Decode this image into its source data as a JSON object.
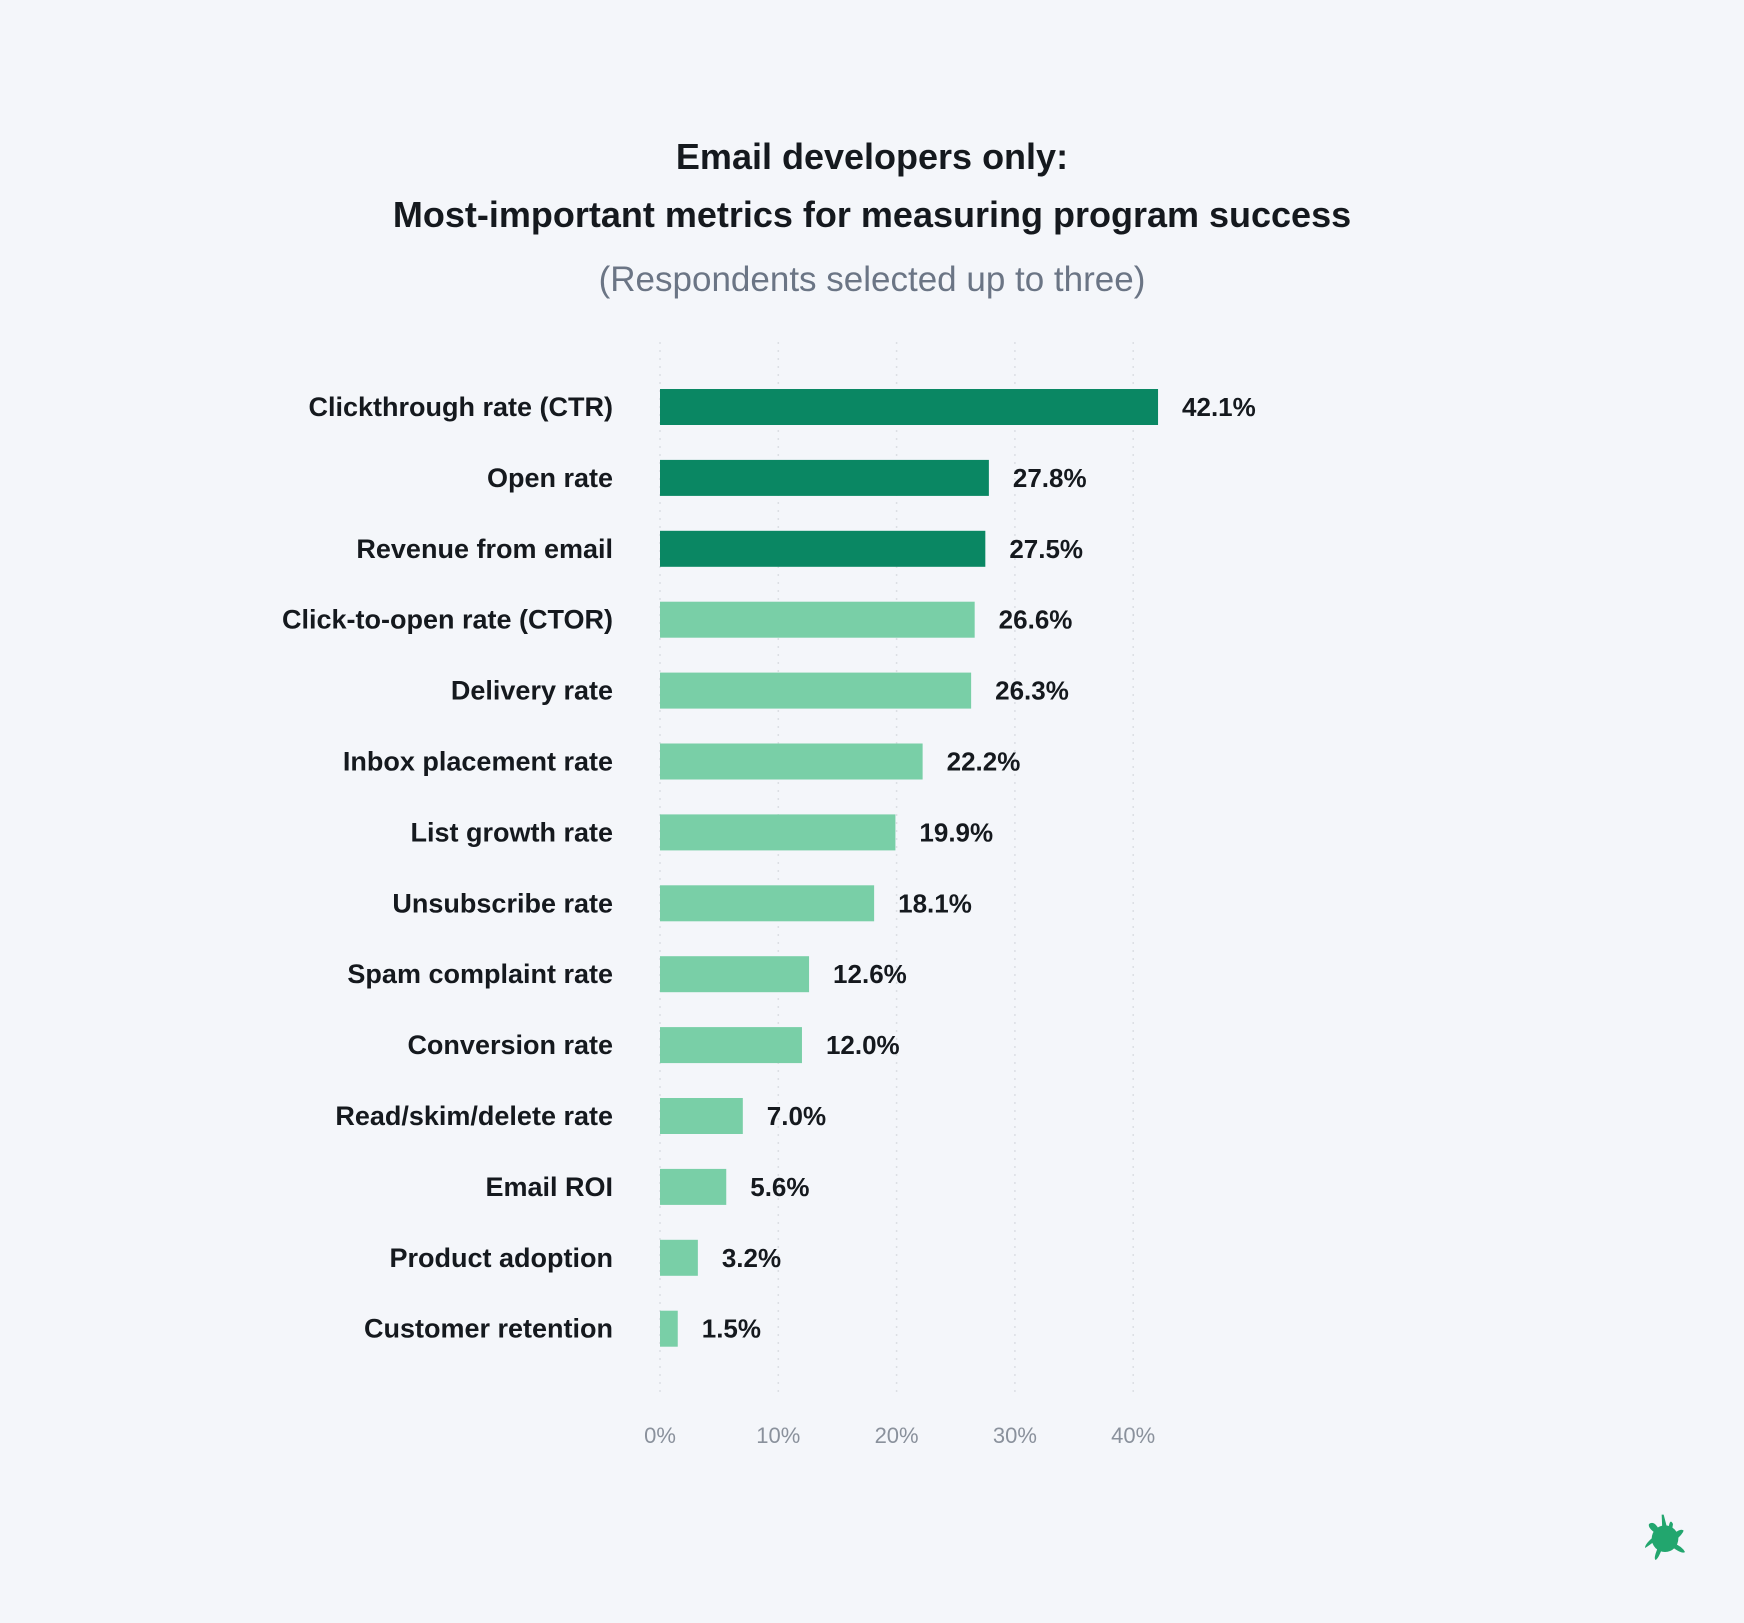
{
  "chart_data": {
    "type": "bar",
    "orientation": "horizontal",
    "title_lines": [
      "Email developers only:",
      "Most-important metrics for measuring program success"
    ],
    "subtitle": "(Respondents selected up to three)",
    "categories": [
      "Clickthrough rate (CTR)",
      "Open rate",
      "Revenue from email",
      "Click-to-open rate (CTOR)",
      "Delivery rate",
      "Inbox placement rate",
      "List growth rate",
      "Unsubscribe rate",
      "Spam complaint rate",
      "Conversion rate",
      "Read/skim/delete rate",
      "Email ROI",
      "Product adoption",
      "Customer retention"
    ],
    "values": [
      42.1,
      27.8,
      27.5,
      26.6,
      26.3,
      22.2,
      19.9,
      18.1,
      12.6,
      12.0,
      7.0,
      5.6,
      3.2,
      1.5
    ],
    "data_labels": [
      "42.1%",
      "27.8%",
      "27.5%",
      "26.6%",
      "26.3%",
      "22.2%",
      "19.9%",
      "18.1%",
      "12.6%",
      "12.0%",
      "7.0%",
      "5.6%",
      "3.2%",
      "1.5%"
    ],
    "highlighted_count": 3,
    "xlim": [
      0,
      42.1
    ],
    "xticks": [
      0,
      10,
      20,
      30,
      40
    ],
    "xtick_labels": [
      "0%",
      "10%",
      "20%",
      "30%",
      "40%"
    ],
    "grid": "vertical dotted",
    "colors": {
      "highlight": "#0a8763",
      "normal": "#79cfa7",
      "background": "#f4f6fa",
      "text": "#15191e",
      "tick": "#8a919c"
    }
  },
  "logo": {
    "icon": "green-splat-icon",
    "color": "#22a66e"
  }
}
